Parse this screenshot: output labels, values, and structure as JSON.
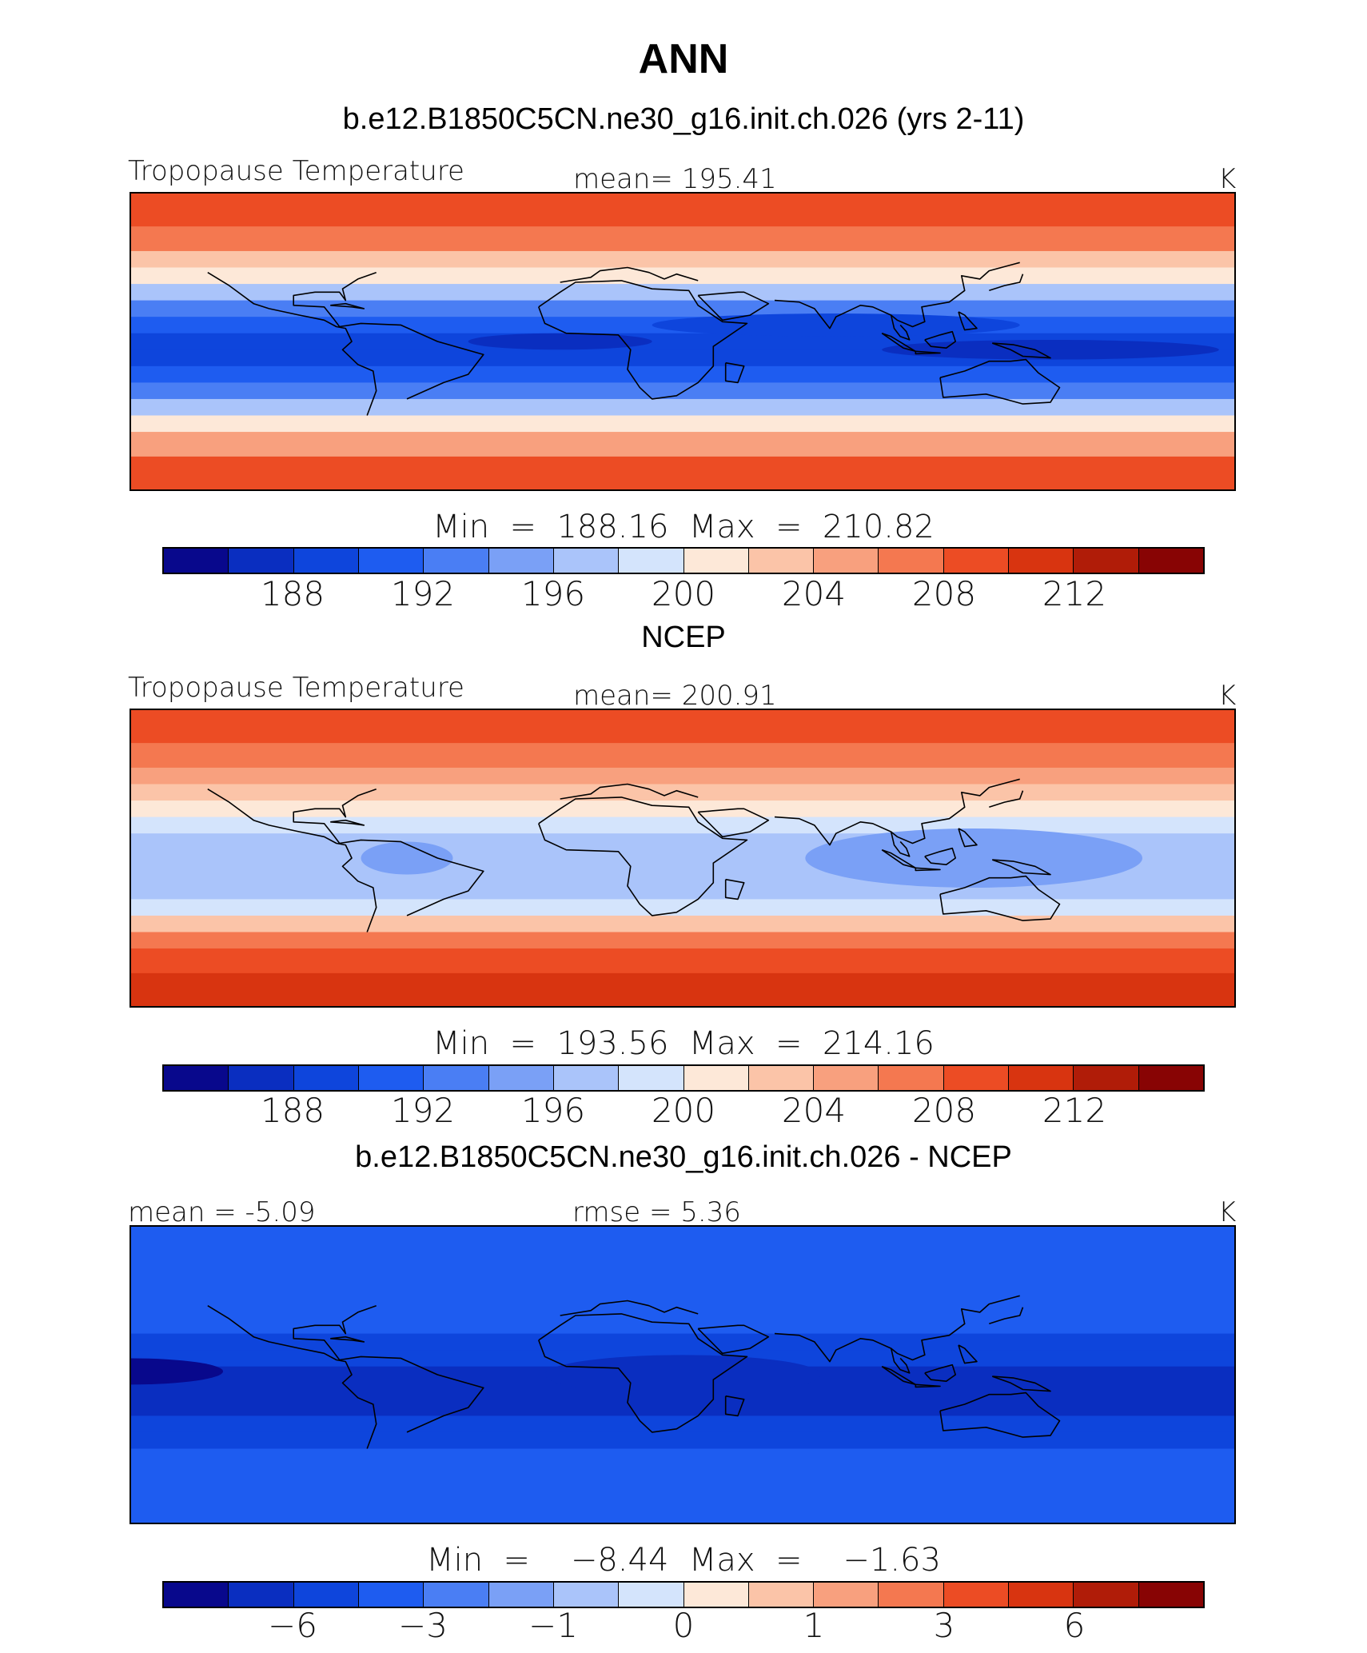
{
  "title": "ANN",
  "palette": [
    "#08088c",
    "#0a2ec0",
    "#0e45dc",
    "#1e5cf0",
    "#4a7ef4",
    "#7aa0f6",
    "#aac4fa",
    "#d4e4fc",
    "#fde8d8",
    "#fbc4a8",
    "#f8a07e",
    "#f47850",
    "#ec4c24",
    "#d83410",
    "#b01c08",
    "#880404"
  ],
  "coast_color": "#000000",
  "chart_data": [
    {
      "type": "heatmap",
      "panel_title": "b.e12.B1850C5CN.ne30_g16.init.ch.026 (yrs 2-11)",
      "variable": "Tropopause Temperature",
      "mean_label": "mean= 195.41",
      "units": "K",
      "minmax_label": "Min  =  188.16  Max  =  210.82",
      "min": 188.16,
      "max": 210.82,
      "mean": 195.41,
      "colorbar_ticks": [
        "188",
        "192",
        "196",
        "200",
        "204",
        "208",
        "212"
      ],
      "tick_slots": [
        2,
        4,
        6,
        8,
        10,
        12,
        14
      ],
      "field": {
        "lats": [
          90,
          70,
          55,
          45,
          35,
          25,
          15,
          5,
          -5,
          -15,
          -25,
          -35,
          -45,
          -55,
          -70,
          -90
        ],
        "levels": [
          12,
          11,
          9,
          8,
          6,
          4,
          3,
          2,
          2,
          3,
          4,
          6,
          8,
          10,
          12,
          13
        ],
        "lobes": [
          {
            "lon": 80,
            "lat": 10,
            "rx": 60,
            "ry": 7,
            "delta": -1
          },
          {
            "lon": 150,
            "lat": -5,
            "rx": 55,
            "ry": 6,
            "delta": -1
          },
          {
            "lon": -10,
            "lat": 0,
            "rx": 30,
            "ry": 5,
            "delta": -1
          }
        ]
      }
    },
    {
      "type": "heatmap",
      "panel_title": "NCEP",
      "variable": "Tropopause Temperature",
      "mean_label": "mean= 200.91",
      "units": "K",
      "minmax_label": "Min  =  193.56  Max  =  214.16",
      "min": 193.56,
      "max": 214.16,
      "mean": 200.91,
      "colorbar_ticks": [
        "188",
        "192",
        "196",
        "200",
        "204",
        "208",
        "212"
      ],
      "tick_slots": [
        2,
        4,
        6,
        8,
        10,
        12,
        14
      ],
      "field": {
        "lats": [
          90,
          70,
          55,
          45,
          35,
          25,
          15,
          5,
          -5,
          -15,
          -25,
          -35,
          -45,
          -55,
          -70,
          -90
        ],
        "levels": [
          12,
          11,
          10,
          9,
          8,
          7,
          6,
          6,
          6,
          6,
          7,
          9,
          11,
          12,
          13,
          13
        ],
        "lobes": [
          {
            "lon": 125,
            "lat": 0,
            "rx": 55,
            "ry": 18,
            "delta": -1
          },
          {
            "lon": -60,
            "lat": 0,
            "rx": 15,
            "ry": 10,
            "delta": -1
          }
        ]
      }
    },
    {
      "type": "heatmap",
      "panel_title": "b.e12.B1850C5CN.ne30_g16.init.ch.026 - NCEP",
      "variable": "",
      "mean_label": "mean =    -5.09",
      "rmse_label": "rmse  =      5.36",
      "units": "K",
      "minmax_label": "Min  =    −8.44  Max  =    −1.63",
      "min": -8.44,
      "max": -1.63,
      "mean": -5.09,
      "rmse": 5.36,
      "colorbar_ticks": [
        "−6",
        "−3",
        "−1",
        "0",
        "1",
        "3",
        "6"
      ],
      "tick_slots": [
        2,
        4,
        6,
        8,
        10,
        12,
        14
      ],
      "field": {
        "lats": [
          90,
          70,
          55,
          45,
          35,
          25,
          15,
          5,
          -5,
          -15,
          -25,
          -35,
          -45,
          -55,
          -70,
          -90
        ],
        "levels": [
          3,
          3,
          3,
          3,
          3,
          2,
          2,
          1,
          1,
          1,
          2,
          2,
          3,
          3,
          3,
          3
        ],
        "lobes": [
          {
            "lon": -150,
            "lat": 2,
            "rx": 30,
            "ry": 8,
            "delta": -1
          },
          {
            "lon": 30,
            "lat": 0,
            "rx": 45,
            "ry": 12,
            "delta": 0
          }
        ]
      }
    }
  ]
}
